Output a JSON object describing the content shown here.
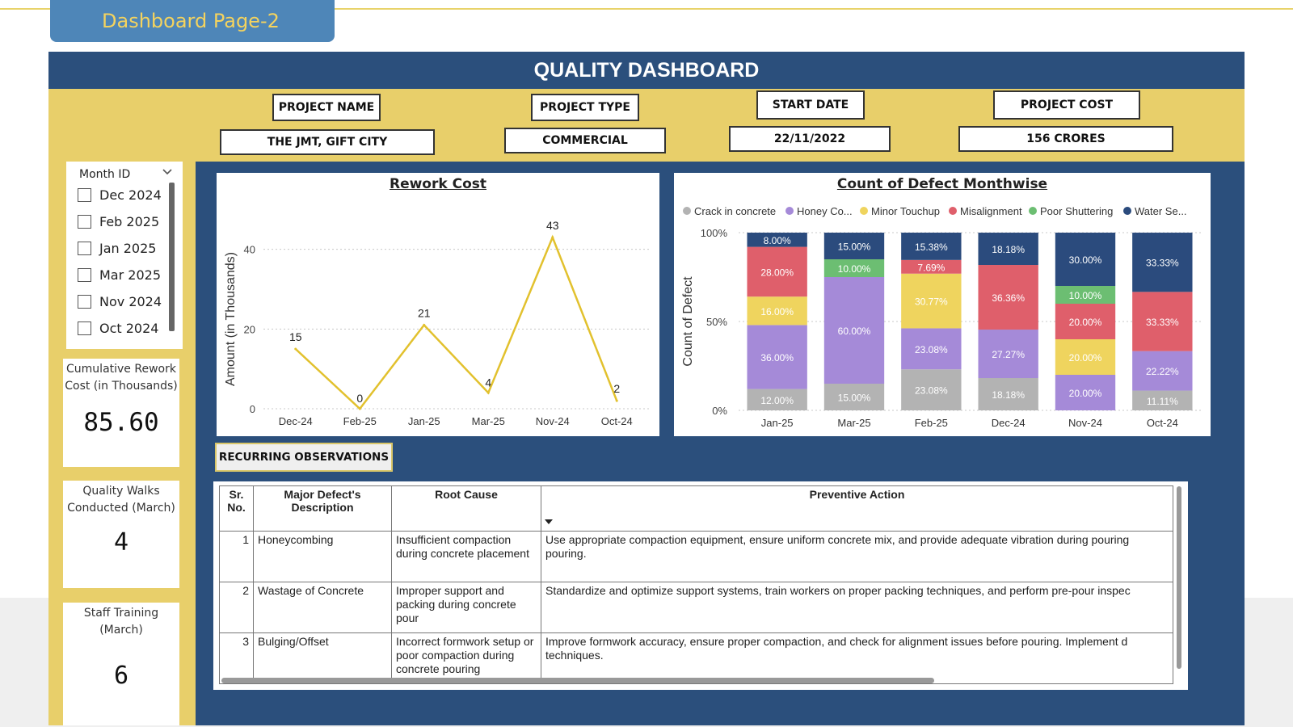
{
  "page_tab": "Dashboard Page-2",
  "dashboard_title": "QUALITY DASHBOARD",
  "project": {
    "name_label": "PROJECT NAME",
    "name_value": "THE JMT, GIFT CITY",
    "type_label": "PROJECT TYPE",
    "type_value": "COMMERCIAL",
    "start_label": "START DATE",
    "start_value": "22/11/2022",
    "cost_label": "PROJECT COST",
    "cost_value": "156 CRORES"
  },
  "slicer": {
    "title": "Month ID",
    "items": [
      "Dec 2024",
      "Feb 2025",
      "Jan 2025",
      "Mar 2025",
      "Nov 2024",
      "Oct 2024"
    ]
  },
  "kpis": [
    {
      "label": "Cumulative Rework Cost (in Thousands)",
      "value": "85.60"
    },
    {
      "label": "Quality Walks Conducted (March)",
      "value": "4"
    },
    {
      "label": "Staff Training (March)",
      "value": "6"
    }
  ],
  "observations_button": "RECURRING OBSERVATIONS",
  "table": {
    "headers": [
      "Sr. No.",
      "Major Defect's Description",
      "Root Cause",
      "Preventive Action"
    ],
    "rows": [
      {
        "no": "1",
        "defect": "Honeycombing",
        "cause": "Insufficient compaction during concrete placement",
        "action": "Use appropriate compaction equipment, ensure uniform concrete mix, and provide adequate vibration during pouring\npouring."
      },
      {
        "no": "2",
        "defect": "Wastage of Concrete",
        "cause": "Improper support and packing during concrete pour",
        "action": "Standardize and optimize support systems, train workers on proper packing techniques, and perform pre-pour inspec"
      },
      {
        "no": "3",
        "defect": "Bulging/Offset",
        "cause": "Incorrect formwork setup or poor compaction during concrete pouring",
        "action": "Improve formwork accuracy, ensure proper compaction, and check for alignment issues before pouring. Implement d\ntechniques."
      }
    ]
  },
  "colors": {
    "navy": "#2b4f7c",
    "yellow": "#e8cf6a",
    "line": "#e2c12e",
    "crack": "#b3b3b3",
    "honey": "#a58ad8",
    "minor": "#efd45e",
    "misalign": "#df5f6b",
    "poor": "#6cbe72",
    "water": "#2b4b7d"
  },
  "chart_data": [
    {
      "type": "line",
      "title": "Rework Cost",
      "ylabel": "Amount (in Thousands)",
      "xlabel": "",
      "categories": [
        "Dec-24",
        "Feb-25",
        "Jan-25",
        "Mar-25",
        "Nov-24",
        "Oct-24"
      ],
      "values": [
        15,
        0,
        21,
        4,
        43,
        2
      ],
      "ylim": [
        0,
        45
      ],
      "yticks": [
        0,
        20,
        40
      ],
      "grid": true
    },
    {
      "type": "bar",
      "stacked": "100%",
      "title": "Count of Defect Monthwise",
      "ylabel": "Count of Defect",
      "xlabel": "",
      "yticks": [
        "0%",
        "50%",
        "100%"
      ],
      "legend_position": "top",
      "legend": [
        "Crack in concrete",
        "Honey Co...",
        "Minor Touchup",
        "Misalignment",
        "Poor Shuttering",
        "Water Se..."
      ],
      "categories": [
        "Jan-25",
        "Mar-25",
        "Feb-25",
        "Dec-24",
        "Nov-24",
        "Oct-24"
      ],
      "series": [
        {
          "name": "Crack in concrete",
          "values": [
            12.0,
            15.0,
            23.08,
            18.18,
            0,
            11.11
          ],
          "labels": [
            "12.00%",
            "15.00%",
            "23.08%",
            "18.18%",
            "",
            "11.11%"
          ]
        },
        {
          "name": "Honey Co...",
          "values": [
            36.0,
            60.0,
            23.08,
            27.27,
            20.0,
            22.22
          ],
          "labels": [
            "36.00%",
            "60.00%",
            "23.08%",
            "27.27%",
            "20.00%",
            "22.22%"
          ]
        },
        {
          "name": "Minor Touchup",
          "values": [
            16.0,
            0,
            30.77,
            0,
            20.0,
            0
          ],
          "labels": [
            "16.00%",
            "",
            "30.77%",
            "",
            "20.00%",
            ""
          ]
        },
        {
          "name": "Misalignment",
          "values": [
            28.0,
            0,
            7.69,
            36.36,
            20.0,
            33.33
          ],
          "labels": [
            "28.00%",
            "",
            "7.69%",
            "36.36%",
            "20.00%",
            "33.33%"
          ]
        },
        {
          "name": "Poor Shuttering",
          "values": [
            0,
            10.0,
            0,
            0,
            10.0,
            0
          ],
          "labels": [
            "",
            "10.00%",
            "",
            "",
            "10.00%",
            ""
          ]
        },
        {
          "name": "Water Se...",
          "values": [
            8.0,
            15.0,
            15.38,
            18.18,
            30.0,
            33.33
          ],
          "labels": [
            "8.00%",
            "15.00%",
            "15.38%",
            "18.18%",
            "30.00%",
            "33.33%"
          ]
        }
      ]
    }
  ]
}
